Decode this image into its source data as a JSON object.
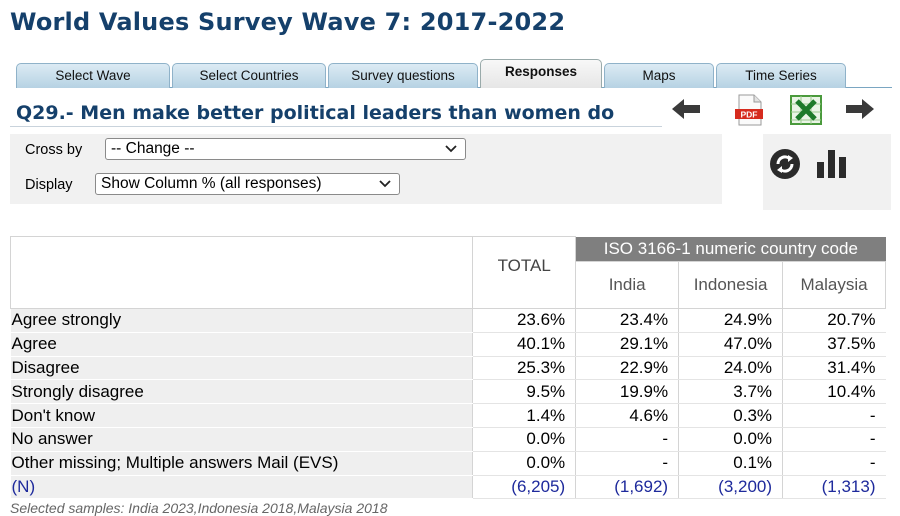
{
  "page_title": "World Values Survey Wave 7: 2017-2022",
  "tabs": [
    {
      "label": "Select Wave",
      "active": false
    },
    {
      "label": "Select Countries",
      "active": false
    },
    {
      "label": "Survey questions",
      "active": false
    },
    {
      "label": "Responses",
      "active": true
    },
    {
      "label": "Maps",
      "active": false
    },
    {
      "label": "Time Series",
      "active": false
    }
  ],
  "question_title": "Q29.- Men make better political leaders than women do",
  "toolbar_icons": [
    "arrow-left-icon",
    "pdf-icon",
    "excel-icon",
    "arrow-right-icon",
    "refresh-icon",
    "bar-chart-icon"
  ],
  "pdf_label": "PDF",
  "controls": {
    "cross_by_label": "Cross by",
    "cross_by_value": "-- Change --",
    "display_label": "Display",
    "display_value": "Show Column % (all responses)"
  },
  "table": {
    "total_header": "TOTAL",
    "group_header": "ISO 3166-1 numeric country code",
    "countries": [
      "India",
      "Indonesia",
      "Malaysia"
    ],
    "rows": [
      {
        "label": "Agree strongly",
        "values": [
          "23.6%",
          "23.4%",
          "24.9%",
          "20.7%"
        ]
      },
      {
        "label": "Agree",
        "values": [
          "40.1%",
          "29.1%",
          "47.0%",
          "37.5%"
        ]
      },
      {
        "label": "Disagree",
        "values": [
          "25.3%",
          "22.9%",
          "24.0%",
          "31.4%"
        ]
      },
      {
        "label": "Strongly disagree",
        "values": [
          "9.5%",
          "19.9%",
          "3.7%",
          "10.4%"
        ]
      },
      {
        "label": "Don't know",
        "values": [
          "1.4%",
          "4.6%",
          "0.3%",
          "-"
        ]
      },
      {
        "label": "No answer",
        "values": [
          "0.0%",
          "-",
          "0.0%",
          "-"
        ]
      },
      {
        "label": "Other missing; Multiple answers Mail (EVS)",
        "values": [
          "0.0%",
          "-",
          "0.1%",
          "-"
        ]
      }
    ],
    "n_row": {
      "label": "(N)",
      "values": [
        "(6,205)",
        "(1,692)",
        "(3,200)",
        "(1,313)"
      ]
    }
  },
  "footnote": "Selected samples: India 2023,Indonesia 2018,Malaysia 2018",
  "colors": {
    "title": "#15406b",
    "tab": "#c7dfec",
    "header_gray": "#7f7f7f",
    "n_row": "#1e2a9c"
  }
}
